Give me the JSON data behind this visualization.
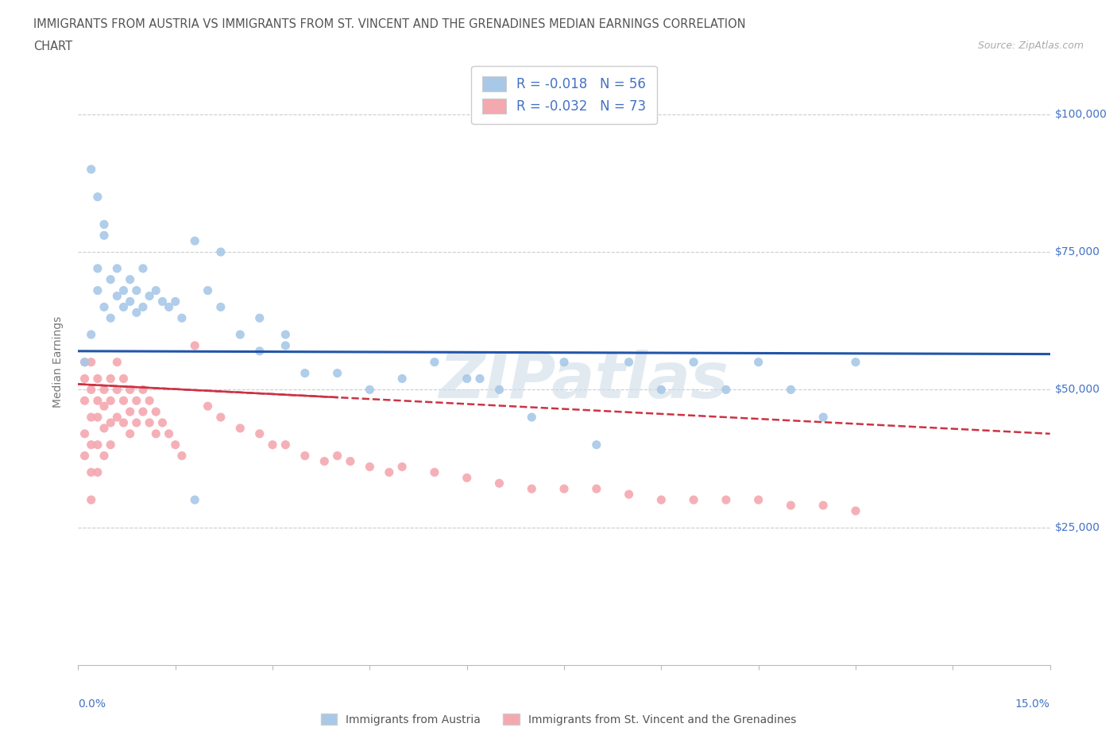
{
  "title_line1": "IMMIGRANTS FROM AUSTRIA VS IMMIGRANTS FROM ST. VINCENT AND THE GRENADINES MEDIAN EARNINGS CORRELATION",
  "title_line2": "CHART",
  "source": "Source: ZipAtlas.com",
  "ylabel": "Median Earnings",
  "xlim": [
    0.0,
    0.15
  ],
  "ylim": [
    0,
    110000
  ],
  "yticks": [
    25000,
    50000,
    75000,
    100000
  ],
  "ytick_labels": [
    "$25,000",
    "$50,000",
    "$75,000",
    "$100,000"
  ],
  "austria_color": "#a8c8e8",
  "svg_color": "#f4a8b0",
  "trend_austria_color": "#2255aa",
  "trend_svg_color": "#cc3344",
  "R_austria": -0.018,
  "N_austria": 56,
  "R_svg": -0.032,
  "N_svg": 73,
  "legend_label_austria": "Immigrants from Austria",
  "legend_label_svg": "Immigrants from St. Vincent and the Grenadines",
  "watermark": "ZIPatlas",
  "austria_x": [
    0.001,
    0.002,
    0.003,
    0.003,
    0.004,
    0.004,
    0.005,
    0.005,
    0.006,
    0.006,
    0.007,
    0.007,
    0.008,
    0.008,
    0.009,
    0.009,
    0.01,
    0.01,
    0.011,
    0.012,
    0.013,
    0.014,
    0.015,
    0.016,
    0.018,
    0.02,
    0.022,
    0.025,
    0.028,
    0.032,
    0.035,
    0.04,
    0.045,
    0.05,
    0.055,
    0.06,
    0.062,
    0.065,
    0.07,
    0.075,
    0.08,
    0.085,
    0.09,
    0.095,
    0.1,
    0.105,
    0.11,
    0.115,
    0.12,
    0.002,
    0.003,
    0.004,
    0.022,
    0.028,
    0.032,
    0.018
  ],
  "austria_y": [
    55000,
    60000,
    68000,
    72000,
    65000,
    80000,
    70000,
    63000,
    67000,
    72000,
    68000,
    65000,
    70000,
    66000,
    68000,
    64000,
    72000,
    65000,
    67000,
    68000,
    66000,
    65000,
    66000,
    63000,
    77000,
    68000,
    65000,
    60000,
    57000,
    58000,
    53000,
    53000,
    50000,
    52000,
    55000,
    52000,
    52000,
    50000,
    45000,
    55000,
    40000,
    55000,
    50000,
    55000,
    50000,
    55000,
    50000,
    45000,
    55000,
    90000,
    85000,
    78000,
    75000,
    63000,
    60000,
    30000
  ],
  "svg_x": [
    0.001,
    0.001,
    0.001,
    0.001,
    0.001,
    0.002,
    0.002,
    0.002,
    0.002,
    0.002,
    0.002,
    0.003,
    0.003,
    0.003,
    0.003,
    0.003,
    0.004,
    0.004,
    0.004,
    0.004,
    0.005,
    0.005,
    0.005,
    0.005,
    0.006,
    0.006,
    0.006,
    0.007,
    0.007,
    0.007,
    0.008,
    0.008,
    0.008,
    0.009,
    0.009,
    0.01,
    0.01,
    0.011,
    0.011,
    0.012,
    0.012,
    0.013,
    0.014,
    0.015,
    0.016,
    0.018,
    0.02,
    0.022,
    0.025,
    0.028,
    0.03,
    0.032,
    0.035,
    0.038,
    0.04,
    0.042,
    0.045,
    0.048,
    0.05,
    0.055,
    0.06,
    0.065,
    0.07,
    0.075,
    0.08,
    0.085,
    0.09,
    0.095,
    0.1,
    0.105,
    0.11,
    0.115,
    0.12
  ],
  "svg_y": [
    48000,
    52000,
    55000,
    42000,
    38000,
    50000,
    55000,
    45000,
    40000,
    35000,
    30000,
    52000,
    48000,
    45000,
    40000,
    35000,
    50000,
    47000,
    43000,
    38000,
    52000,
    48000,
    44000,
    40000,
    55000,
    50000,
    45000,
    52000,
    48000,
    44000,
    50000,
    46000,
    42000,
    48000,
    44000,
    50000,
    46000,
    48000,
    44000,
    46000,
    42000,
    44000,
    42000,
    40000,
    38000,
    58000,
    47000,
    45000,
    43000,
    42000,
    40000,
    40000,
    38000,
    37000,
    38000,
    37000,
    36000,
    35000,
    36000,
    35000,
    34000,
    33000,
    32000,
    32000,
    32000,
    31000,
    30000,
    30000,
    30000,
    30000,
    29000,
    29000,
    28000
  ]
}
